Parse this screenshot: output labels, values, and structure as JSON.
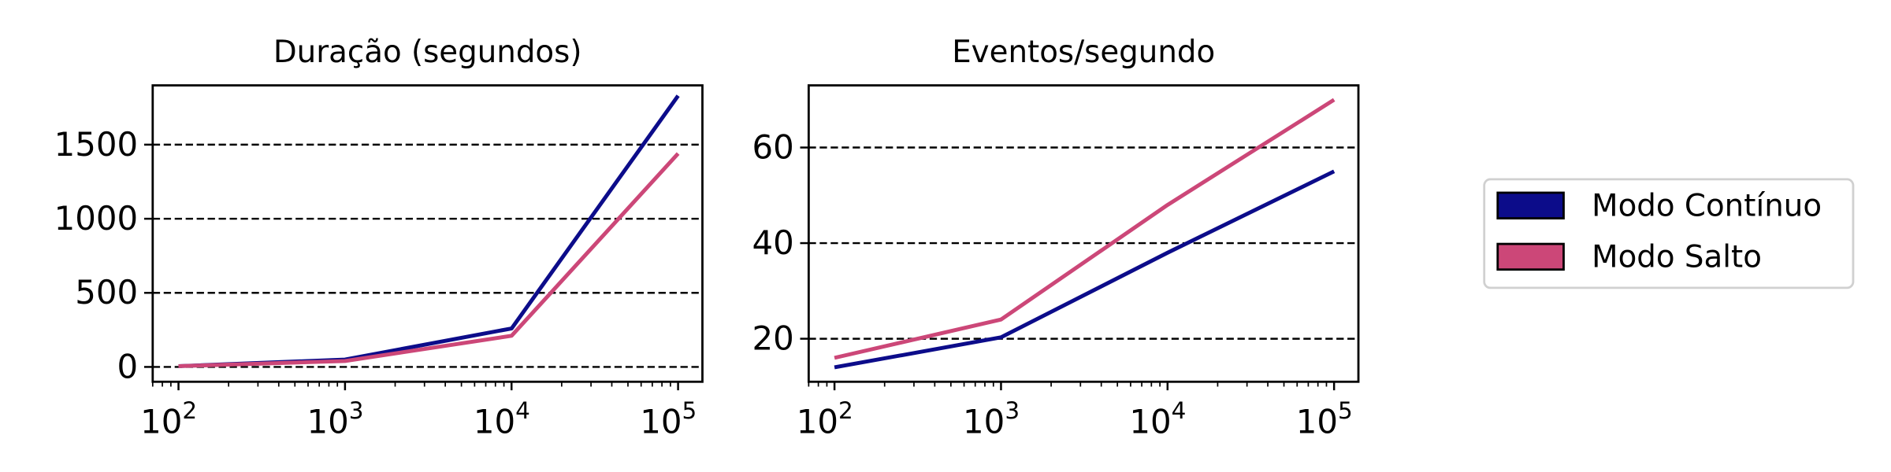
{
  "legend": {
    "placement": "right",
    "entries": [
      {
        "label": "Modo Contínuo",
        "color": "#0c0c8a"
      },
      {
        "label": "Modo Salto",
        "color": "#cc4778"
      }
    ]
  },
  "chart_data": [
    {
      "type": "line",
      "title": "Duração (segundos)",
      "xscale": "log",
      "xlim": [
        70,
        140000
      ],
      "ylim": [
        -100,
        1900
      ],
      "xticks": [
        100,
        1000,
        10000,
        100000
      ],
      "xtick_labels": [
        {
          "base": "10",
          "exp": "2"
        },
        {
          "base": "10",
          "exp": "3"
        },
        {
          "base": "10",
          "exp": "4"
        },
        {
          "base": "10",
          "exp": "5"
        }
      ],
      "yticks": [
        0,
        500,
        1000,
        1500
      ],
      "ytick_labels": [
        "0",
        "500",
        "1000",
        "1500"
      ],
      "grid": "horizontal dashed",
      "x": [
        100,
        1000,
        10000,
        100000
      ],
      "series": [
        {
          "name": "Modo Contínuo",
          "color": "#0c0c8a",
          "values": [
            5,
            50,
            260,
            1830
          ]
        },
        {
          "name": "Modo Salto",
          "color": "#cc4778",
          "values": [
            5,
            40,
            210,
            1440
          ]
        }
      ]
    },
    {
      "type": "line",
      "title": "Eventos/segundo",
      "xscale": "log",
      "xlim": [
        70,
        140000
      ],
      "ylim": [
        11,
        73
      ],
      "xticks": [
        100,
        1000,
        10000,
        100000
      ],
      "xtick_labels": [
        {
          "base": "10",
          "exp": "2"
        },
        {
          "base": "10",
          "exp": "3"
        },
        {
          "base": "10",
          "exp": "4"
        },
        {
          "base": "10",
          "exp": "5"
        }
      ],
      "yticks": [
        20,
        40,
        60
      ],
      "ytick_labels": [
        "20",
        "40",
        "60"
      ],
      "grid": "horizontal dashed",
      "x": [
        100,
        1000,
        10000,
        100000
      ],
      "series": [
        {
          "name": "Modo Contínuo",
          "color": "#0c0c8a",
          "values": [
            14,
            20.3,
            38,
            55
          ]
        },
        {
          "name": "Modo Salto",
          "color": "#cc4778",
          "values": [
            16,
            24,
            48,
            70
          ]
        }
      ]
    }
  ]
}
